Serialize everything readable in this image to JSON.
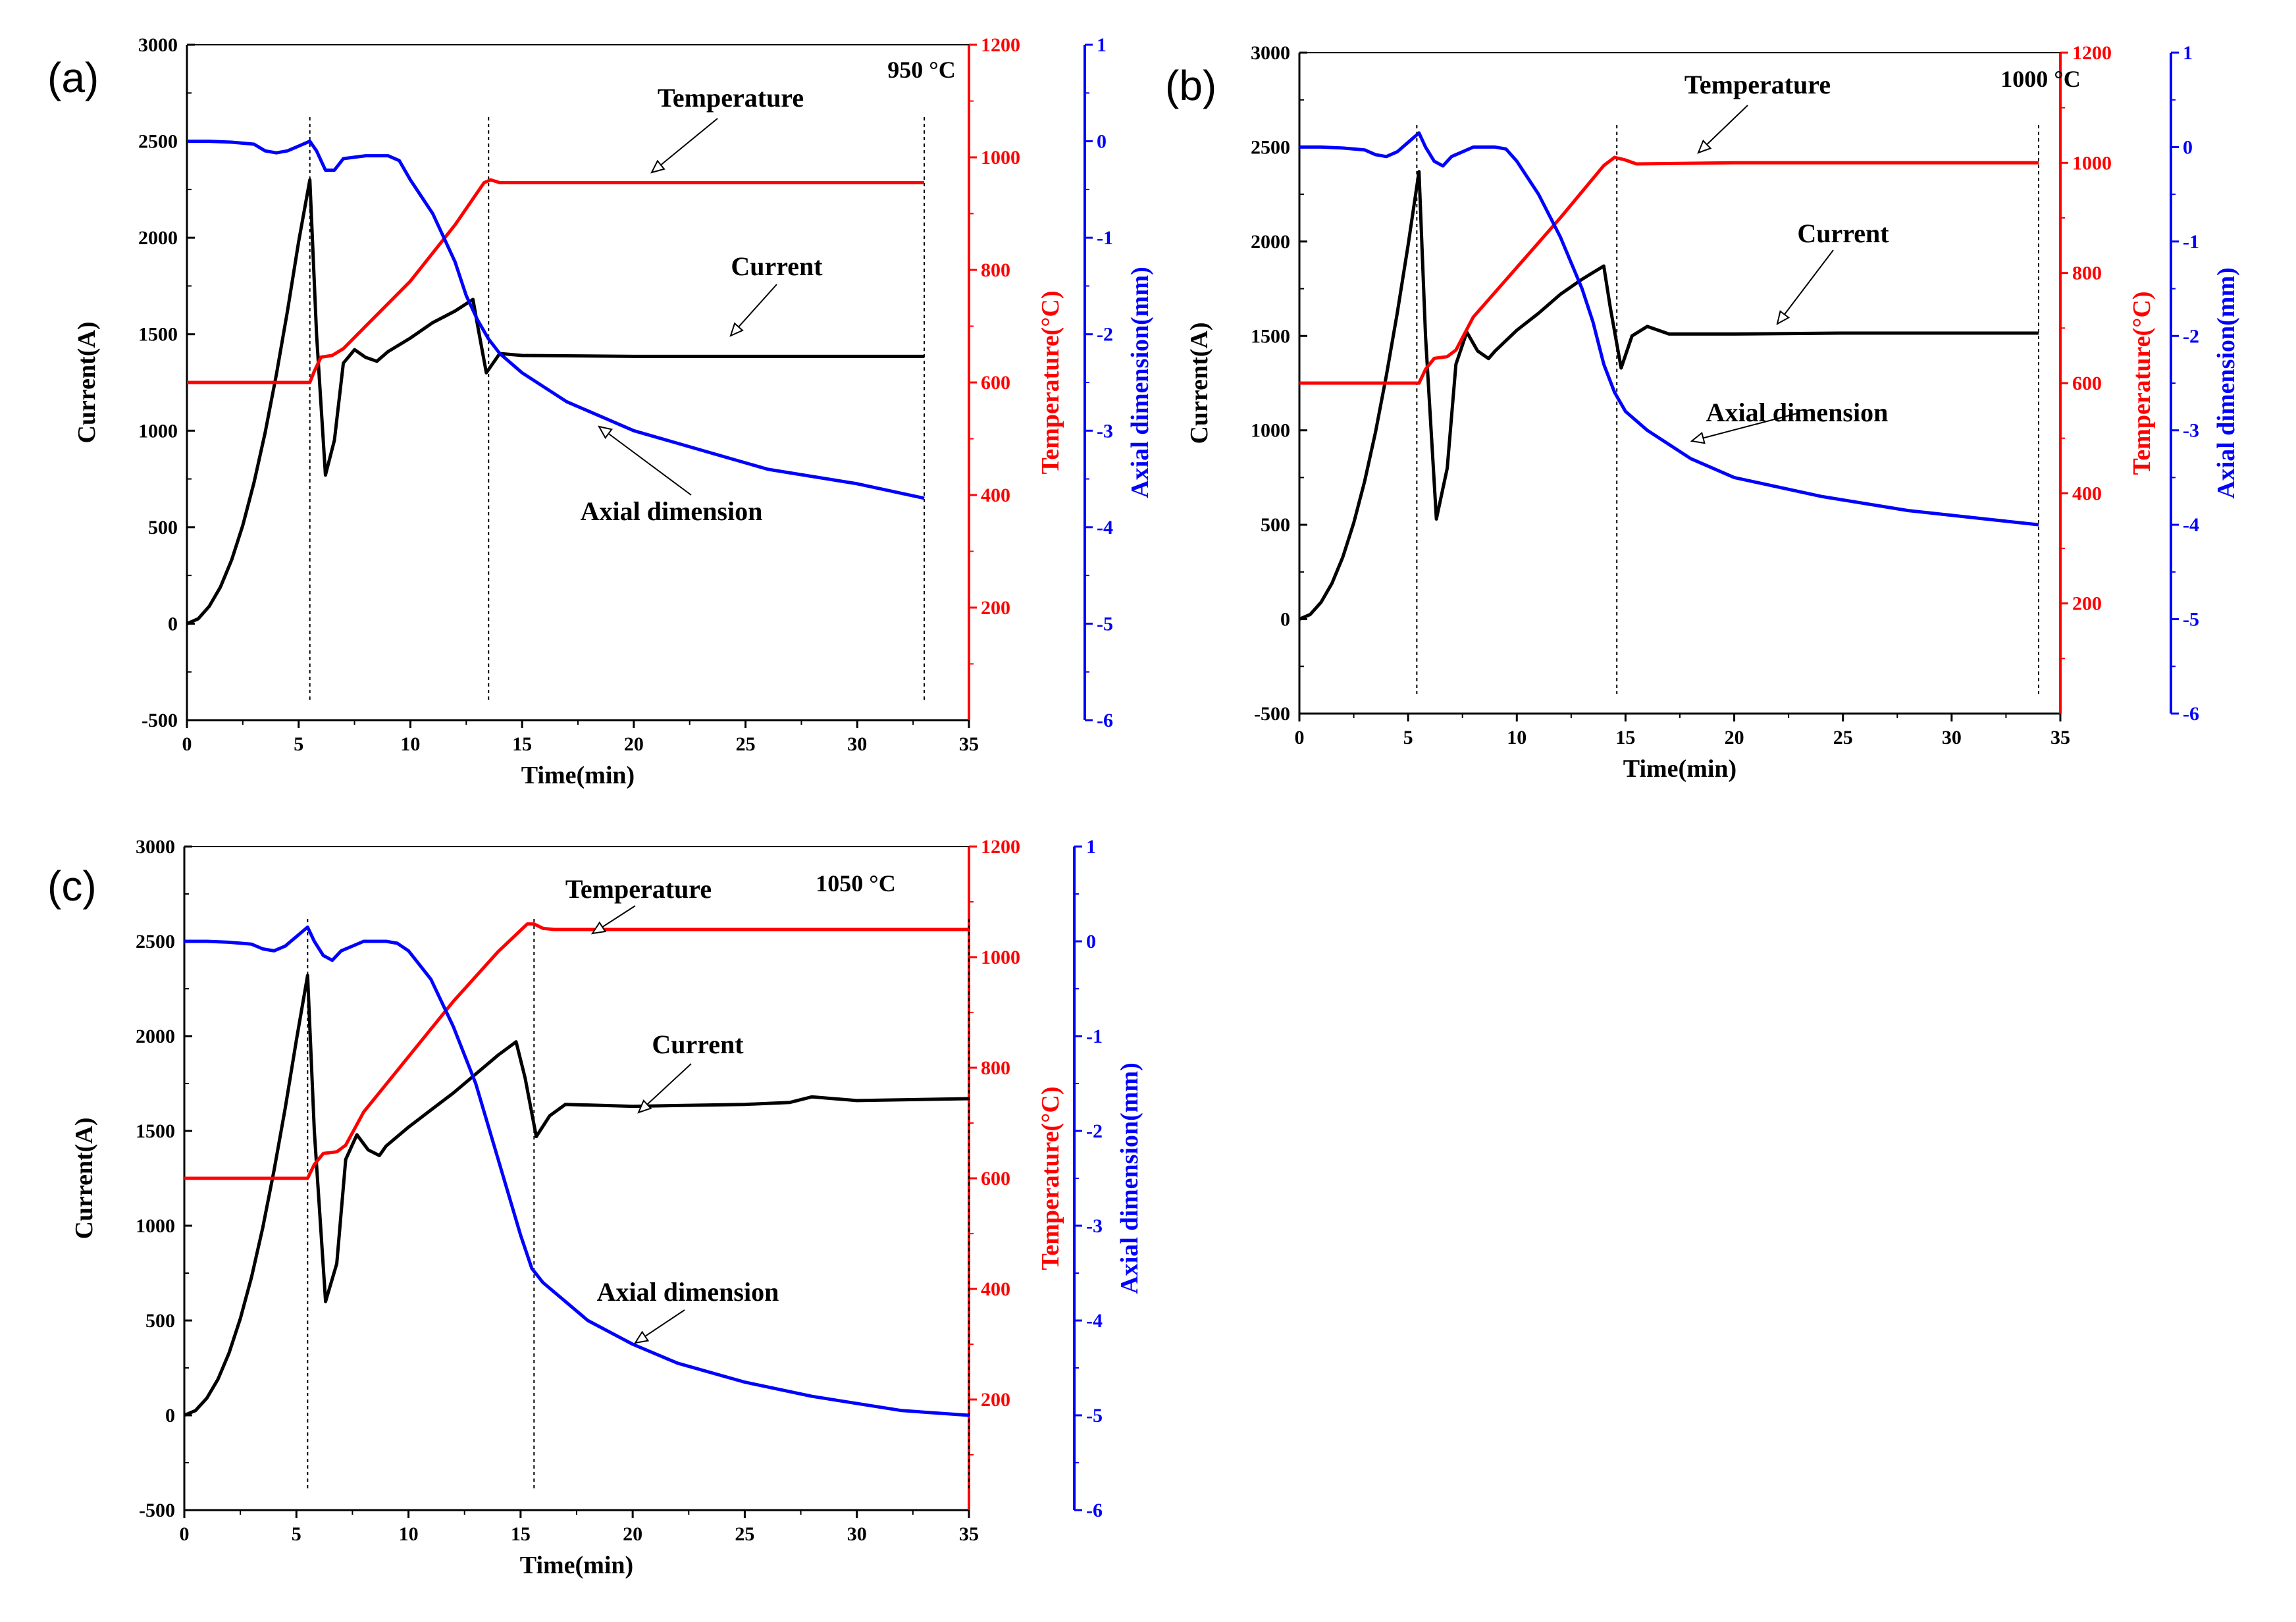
{
  "figure": {
    "panels": [
      {
        "panel_label": "(a)",
        "temperature_label": "950 °C",
        "annotations": {
          "temperature": "Temperature",
          "current": "Current",
          "axial": "Axial dimension"
        }
      },
      {
        "panel_label": "(b)",
        "temperature_label": "1000 °C",
        "annotations": {
          "temperature": "Temperature",
          "current": "Current",
          "axial": "Axial dimension"
        }
      },
      {
        "panel_label": "(c)",
        "temperature_label": "1050 °C",
        "annotations": {
          "temperature": "Temperature",
          "current": "Current",
          "axial": "Axial dimension"
        }
      }
    ]
  },
  "chart_data": [
    {
      "type": "line",
      "title": "",
      "xlabel": "Time(min)",
      "ylabel": "Current(A)",
      "y2label": "Temperature(°C)",
      "y3label": "Axial dimension(mm)",
      "xlim": [
        0,
        35
      ],
      "ylim": [
        -500,
        3000
      ],
      "y2lim": [
        0,
        1200
      ],
      "y3lim": [
        -6,
        1
      ],
      "xticks": [
        "0",
        "5",
        "10",
        "15",
        "20",
        "25",
        "30",
        "35"
      ],
      "yticks": [
        "-500",
        "0",
        "500",
        "1000",
        "1500",
        "2000",
        "2500",
        "3000"
      ],
      "y2ticks": [
        "200",
        "400",
        "600",
        "800",
        "1000",
        "1200"
      ],
      "y3ticks": [
        "-6",
        "-5",
        "-4",
        "-3",
        "-2",
        "-1",
        "0",
        "1"
      ],
      "colors": {
        "current": "#000000",
        "temperature": "#ff0000",
        "axial": "#0000ff"
      },
      "vlines": [
        5.5,
        13.5,
        33
      ],
      "series": [
        {
          "name": "Current",
          "axis": "left",
          "x": [
            0,
            0.5,
            1,
            1.5,
            2,
            2.5,
            3,
            3.5,
            4,
            4.5,
            5,
            5.5,
            5.8,
            6.2,
            6.6,
            7,
            7.5,
            8,
            8.5,
            9,
            10,
            11,
            12,
            12.8,
            13,
            13.4,
            14,
            15,
            20,
            25,
            30,
            33
          ],
          "y": [
            0,
            25,
            90,
            190,
            330,
            510,
            730,
            990,
            1290,
            1620,
            1980,
            2300,
            1500,
            770,
            950,
            1350,
            1420,
            1380,
            1360,
            1410,
            1480,
            1560,
            1620,
            1680,
            1550,
            1300,
            1400,
            1390,
            1385,
            1385,
            1385,
            1385
          ]
        },
        {
          "name": "Temperature",
          "axis": "right1",
          "x": [
            0,
            5.5,
            5.7,
            6,
            6.5,
            7,
            8,
            10,
            12,
            13.3,
            13.6,
            14,
            20,
            25,
            33
          ],
          "y": [
            600,
            600,
            620,
            645,
            648,
            660,
            700,
            780,
            880,
            955,
            960,
            955,
            955,
            955,
            955
          ]
        },
        {
          "name": "Axial dimension",
          "axis": "right2",
          "x": [
            0,
            1,
            2,
            3,
            3.5,
            4,
            4.5,
            5,
            5.5,
            5.8,
            6.2,
            6.6,
            7,
            8,
            9,
            9.5,
            10,
            11,
            12,
            12.5,
            13,
            13.5,
            14,
            15,
            17,
            20,
            23,
            26,
            30,
            33
          ],
          "y": [
            0,
            0,
            -0.01,
            -0.03,
            -0.1,
            -0.12,
            -0.1,
            -0.05,
            0,
            -0.1,
            -0.3,
            -0.3,
            -0.18,
            -0.15,
            -0.15,
            -0.2,
            -0.4,
            -0.75,
            -1.25,
            -1.6,
            -1.85,
            -2.05,
            -2.2,
            -2.4,
            -2.7,
            -3.0,
            -3.2,
            -3.4,
            -3.55,
            -3.7
          ]
        }
      ]
    },
    {
      "type": "line",
      "title": "",
      "xlabel": "Time(min)",
      "ylabel": "Current(A)",
      "y2label": "Temperature(°C)",
      "y3label": "Axial dimension(mm)",
      "xlim": [
        0,
        35
      ],
      "ylim": [
        -500,
        3000
      ],
      "y2lim": [
        0,
        1200
      ],
      "y3lim": [
        -6,
        1
      ],
      "xticks": [
        "0",
        "5",
        "10",
        "15",
        "20",
        "25",
        "30",
        "35"
      ],
      "yticks": [
        "-500",
        "0",
        "500",
        "1000",
        "1500",
        "2000",
        "2500",
        "3000"
      ],
      "y2ticks": [
        "200",
        "400",
        "600",
        "800",
        "1000",
        "1200"
      ],
      "y3ticks": [
        "-6",
        "-5",
        "-4",
        "-3",
        "-2",
        "-1",
        "0",
        "1"
      ],
      "colors": {
        "current": "#000000",
        "temperature": "#ff0000",
        "axial": "#0000ff"
      },
      "vlines": [
        5.4,
        14.6,
        34
      ],
      "series": [
        {
          "name": "Current",
          "axis": "left",
          "x": [
            0,
            0.5,
            1,
            1.5,
            2,
            2.5,
            3,
            3.5,
            4,
            4.5,
            5,
            5.5,
            5.8,
            6.3,
            6.8,
            7.2,
            7.7,
            8.2,
            8.7,
            9,
            10,
            11,
            12,
            13,
            14,
            14.3,
            14.8,
            15.3,
            16,
            17,
            20,
            25,
            30,
            34
          ],
          "y": [
            0,
            25,
            90,
            190,
            330,
            510,
            730,
            990,
            1290,
            1620,
            1980,
            2370,
            1500,
            530,
            800,
            1350,
            1520,
            1420,
            1380,
            1420,
            1530,
            1620,
            1720,
            1800,
            1870,
            1650,
            1330,
            1500,
            1550,
            1510,
            1510,
            1515,
            1515,
            1515
          ]
        },
        {
          "name": "Temperature",
          "axis": "right1",
          "x": [
            0,
            5.5,
            5.8,
            6.2,
            6.8,
            7.2,
            8,
            10,
            12,
            14,
            14.5,
            15,
            15.5,
            20,
            25,
            34
          ],
          "y": [
            600,
            600,
            625,
            645,
            648,
            660,
            720,
            810,
            900,
            995,
            1010,
            1005,
            998,
            1000,
            1000,
            1000
          ]
        },
        {
          "name": "Axial dimension",
          "axis": "right2",
          "x": [
            0,
            1,
            2,
            3,
            3.5,
            4,
            4.5,
            5,
            5.5,
            5.8,
            6.2,
            6.6,
            7,
            8,
            9,
            9.5,
            10,
            11,
            12,
            13,
            13.5,
            14,
            14.5,
            15,
            16,
            18,
            20,
            24,
            28,
            32,
            34
          ],
          "y": [
            0,
            0,
            -0.01,
            -0.03,
            -0.08,
            -0.1,
            -0.05,
            0.05,
            0.15,
            0,
            -0.15,
            -0.2,
            -0.1,
            0,
            0,
            -0.02,
            -0.15,
            -0.5,
            -0.95,
            -1.5,
            -1.85,
            -2.3,
            -2.6,
            -2.8,
            -3.0,
            -3.3,
            -3.5,
            -3.7,
            -3.85,
            -3.95,
            -4.0
          ]
        }
      ]
    },
    {
      "type": "line",
      "title": "",
      "xlabel": "Time(min)",
      "ylabel": "Current(A)",
      "y2label": "Temperature(°C)",
      "y3label": "Axial dimension(mm)",
      "xlim": [
        0,
        35
      ],
      "ylim": [
        -500,
        3000
      ],
      "y2lim": [
        0,
        1200
      ],
      "y3lim": [
        -6,
        1
      ],
      "xticks": [
        "0",
        "5",
        "10",
        "15",
        "20",
        "25",
        "30",
        "35"
      ],
      "yticks": [
        "-500",
        "0",
        "500",
        "1000",
        "1500",
        "2000",
        "2500",
        "3000"
      ],
      "y2ticks": [
        "200",
        "400",
        "600",
        "800",
        "1000",
        "1200"
      ],
      "y3ticks": [
        "-6",
        "-5",
        "-4",
        "-3",
        "-2",
        "-1",
        "0",
        "1"
      ],
      "colors": {
        "current": "#000000",
        "temperature": "#ff0000",
        "axial": "#0000ff"
      },
      "vlines": [
        5.5,
        15.6,
        35
      ],
      "series": [
        {
          "name": "Current",
          "axis": "left",
          "x": [
            0,
            0.5,
            1,
            1.5,
            2,
            2.5,
            3,
            3.5,
            4,
            4.5,
            5,
            5.5,
            5.8,
            6.3,
            6.8,
            7.2,
            7.7,
            8.2,
            8.7,
            9,
            10,
            11,
            12,
            13,
            14,
            14.8,
            15.2,
            15.7,
            16.3,
            17,
            20,
            25,
            27,
            28,
            30,
            35
          ],
          "y": [
            0,
            25,
            90,
            190,
            330,
            510,
            730,
            990,
            1290,
            1620,
            1980,
            2320,
            1500,
            600,
            800,
            1350,
            1480,
            1400,
            1370,
            1420,
            1520,
            1610,
            1700,
            1800,
            1900,
            1970,
            1780,
            1470,
            1580,
            1640,
            1630,
            1640,
            1650,
            1680,
            1660,
            1670
          ]
        },
        {
          "name": "Temperature",
          "axis": "right1",
          "x": [
            0,
            5.5,
            5.8,
            6.2,
            6.8,
            7.2,
            8,
            10,
            12,
            14,
            15.3,
            15.6,
            16,
            16.5,
            20,
            25,
            35
          ],
          "y": [
            600,
            600,
            625,
            645,
            648,
            660,
            720,
            820,
            920,
            1010,
            1060,
            1060,
            1052,
            1050,
            1050,
            1050,
            1050
          ]
        },
        {
          "name": "Axial dimension",
          "axis": "right2",
          "x": [
            0,
            1,
            2,
            3,
            3.5,
            4,
            4.5,
            5,
            5.5,
            5.8,
            6.2,
            6.6,
            7,
            8,
            9,
            9.5,
            10,
            11,
            12,
            13,
            14,
            15,
            15.5,
            16,
            17,
            18,
            20,
            22,
            25,
            28,
            32,
            35
          ],
          "y": [
            0,
            0,
            -0.01,
            -0.03,
            -0.08,
            -0.1,
            -0.05,
            0.05,
            0.15,
            0,
            -0.15,
            -0.2,
            -0.1,
            0,
            0,
            -0.02,
            -0.1,
            -0.4,
            -0.9,
            -1.5,
            -2.3,
            -3.1,
            -3.45,
            -3.6,
            -3.8,
            -4.0,
            -4.25,
            -4.45,
            -4.65,
            -4.8,
            -4.95,
            -5.0
          ]
        }
      ]
    }
  ]
}
